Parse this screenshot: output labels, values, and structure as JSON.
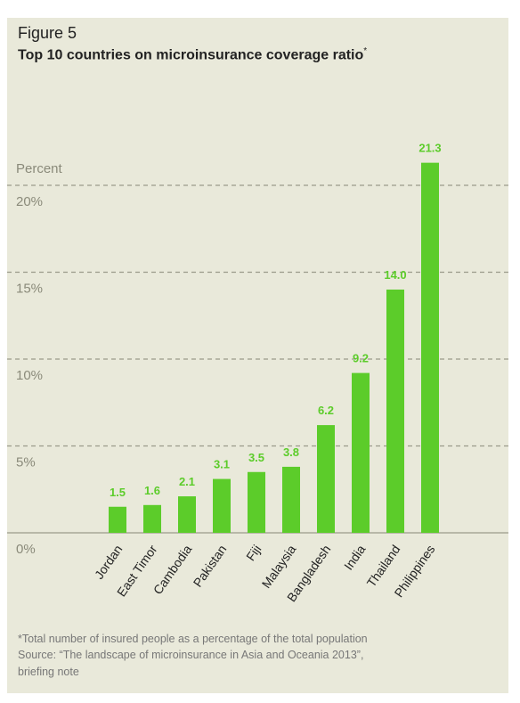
{
  "figure_label": "Figure 5",
  "title": "Top 10 countries on microinsurance coverage ratio",
  "title_marker": "*",
  "footnotes": [
    "*Total number of insured people as a percentage of the total population",
    "Source: “The landscape of microinsurance in Asia and Oceania 2013”,",
    "briefing note"
  ],
  "colors": {
    "background": "#e9e9da",
    "bar": "#5ccc2a",
    "value_label": "#5ccc2a",
    "grid": "#9a9a8a",
    "axis_text": "#8a8a7a",
    "category_text": "#222222"
  },
  "chart_data": {
    "type": "bar",
    "categories": [
      "Jordan",
      "East Timor",
      "Cambodia",
      "Pakistan",
      "Fiji",
      "Malaysia",
      "Bangladesh",
      "India",
      "Thailand",
      "Philippines"
    ],
    "values": [
      1.5,
      1.6,
      2.1,
      3.1,
      3.5,
      3.8,
      6.2,
      9.2,
      14.0,
      21.3
    ],
    "value_labels": [
      "1.5",
      "1.6",
      "2.1",
      "3.1",
      "3.5",
      "3.8",
      "6.2",
      "9.2",
      "14.0",
      "21.3"
    ],
    "ylabel": "Percent",
    "ylim": [
      0,
      20
    ],
    "yticks": [
      0,
      5,
      10,
      15,
      20
    ],
    "ytick_labels": [
      "0%",
      "5%",
      "10%",
      "15%",
      "20%"
    ],
    "grid": true
  }
}
